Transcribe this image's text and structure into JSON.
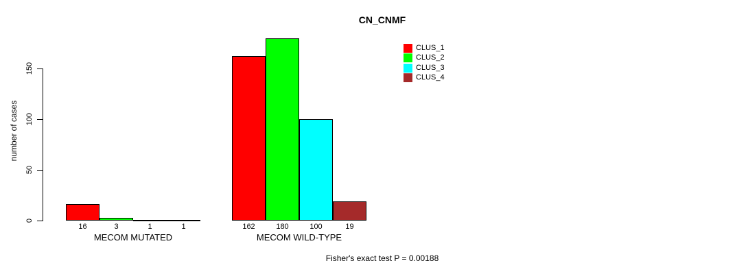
{
  "chart_data": {
    "type": "bar",
    "title": "CN_CNMF",
    "ylabel": "number of cases",
    "xlabel": "",
    "categories": [
      "MECOM MUTATED",
      "MECOM WILD-TYPE"
    ],
    "series": [
      {
        "name": "CLUS_1",
        "color": "#ff0000",
        "values": [
          16,
          162
        ]
      },
      {
        "name": "CLUS_2",
        "color": "#00ff00",
        "values": [
          3,
          180
        ]
      },
      {
        "name": "CLUS_3",
        "color": "#00ffff",
        "values": [
          1,
          100
        ]
      },
      {
        "name": "CLUS_4",
        "color": "#a52a2a",
        "values": [
          1,
          19
        ]
      }
    ],
    "yticks": [
      0,
      50,
      100,
      150
    ],
    "ylim": [
      0,
      190
    ],
    "grid": false,
    "legend_position": "top-right",
    "annotation": "Fisher's exact test P = 0.00188"
  }
}
